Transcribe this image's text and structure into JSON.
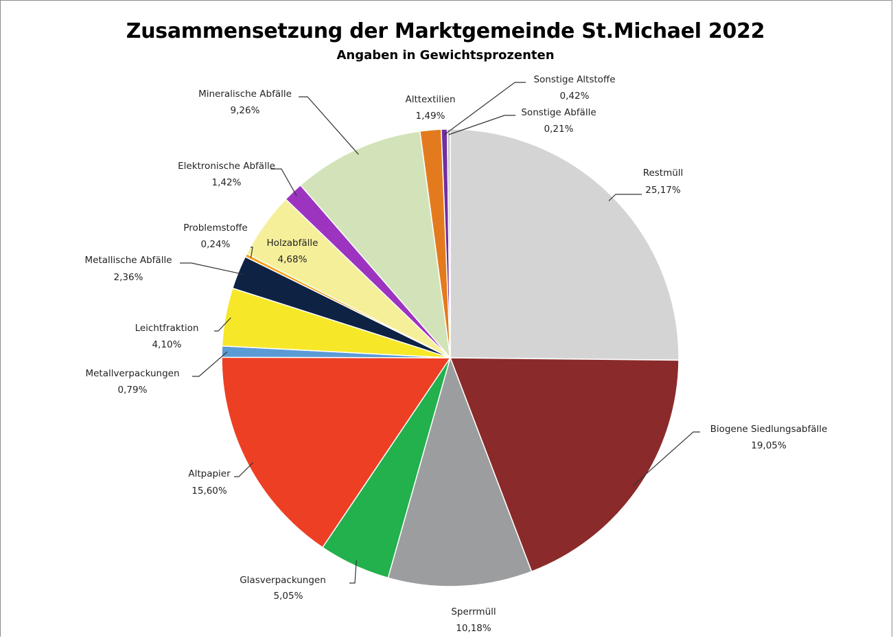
{
  "chart_data": {
    "type": "pie",
    "title": "Zusammensetzung der Marktgemeinde St.Michael 2022",
    "subtitle": "Angaben in Gewichtsprozenten",
    "start": "12 o'clock, clockwise",
    "slices": [
      {
        "name": "Restmüll",
        "value": 25.17,
        "label": "25,17%",
        "color": "#d4d4d4"
      },
      {
        "name": "Biogene Siedlungsabfälle",
        "value": 19.05,
        "label": "19,05%",
        "color": "#8b2a2a"
      },
      {
        "name": "Sperrmüll",
        "value": 10.18,
        "label": "10,18%",
        "color": "#9c9d9e"
      },
      {
        "name": "Glasverpackungen",
        "value": 5.05,
        "label": "5,05%",
        "color": "#22b14c"
      },
      {
        "name": "Altpapier",
        "value": 15.6,
        "label": "15,60%",
        "color": "#ed3f24"
      },
      {
        "name": "Metallverpackungen",
        "value": 0.79,
        "label": "0,79%",
        "color": "#5b9bd5"
      },
      {
        "name": "Leichtfraktion",
        "value": 4.1,
        "label": "4,10%",
        "color": "#f6e829"
      },
      {
        "name": "Metallische Abfälle",
        "value": 2.36,
        "label": "2,36%",
        "color": "#0e2244"
      },
      {
        "name": "Problemstoffe",
        "value": 0.24,
        "label": "0,24%",
        "color": "#f3a21b"
      },
      {
        "name": "Holzabfälle",
        "value": 4.68,
        "label": "4,68%",
        "color": "#f5ef9a"
      },
      {
        "name": "Elektronische Abfälle",
        "value": 1.42,
        "label": "1,42%",
        "color": "#9d34bf"
      },
      {
        "name": "Mineralische Abfälle",
        "value": 9.26,
        "label": "9,26%",
        "color": "#d3e3b9"
      },
      {
        "name": "Alttextilien",
        "value": 1.49,
        "label": "1,49%",
        "color": "#e37b1e"
      },
      {
        "name": "Sonstige Altstoffe",
        "value": 0.42,
        "label": "0,42%",
        "color": "#7030a0"
      },
      {
        "name": "Sonstige Abfälle",
        "value": 0.21,
        "label": "0,21%",
        "color": "#c6c6c6"
      }
    ]
  }
}
